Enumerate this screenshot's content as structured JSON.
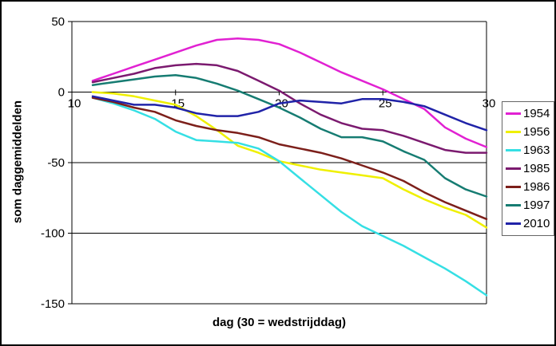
{
  "chart_data": {
    "type": "line",
    "title": "",
    "xlabel": "dag (30 = wedstrijddag)",
    "ylabel": "som daggemiddelden",
    "xlim": [
      10,
      30
    ],
    "ylim": [
      -150,
      50
    ],
    "x_ticks": [
      "10",
      "15",
      "20",
      "25",
      "30"
    ],
    "y_ticks": [
      "50",
      "0",
      "-50",
      "-100",
      "-150"
    ],
    "grid": "horizontal",
    "legend_position": "right",
    "x_first_day": 11,
    "x_step": 1,
    "axis_color": "#000000",
    "gridline_color": "#000000",
    "series": [
      {
        "name": "1954",
        "color": "#E121D2",
        "values": [
          8,
          13,
          18,
          23,
          28,
          33,
          37,
          38,
          37,
          34,
          28,
          21,
          14,
          8,
          2,
          -5,
          -12,
          -25,
          -33,
          -39
        ]
      },
      {
        "name": "1956",
        "color": "#EFF000",
        "values": [
          0,
          -1,
          -3,
          -6,
          -9,
          -17,
          -27,
          -38,
          -43,
          -49,
          -52,
          -55,
          -57,
          -59,
          -61,
          -69,
          -76,
          -82,
          -87,
          -96
        ]
      },
      {
        "name": "1963",
        "color": "#35DFE4",
        "values": [
          -4,
          -8,
          -13,
          -19,
          -28,
          -34,
          -35,
          -36,
          -40,
          -49,
          -61,
          -73,
          -85,
          -95,
          -102,
          -109,
          -117,
          -125,
          -134,
          -144
        ]
      },
      {
        "name": "1985",
        "color": "#7B1A6F",
        "values": [
          7,
          10,
          13,
          17,
          19,
          20,
          19,
          15,
          8,
          1,
          -8,
          -16,
          -22,
          -26,
          -27,
          -31,
          -36,
          -41,
          -43,
          -43
        ]
      },
      {
        "name": "1986",
        "color": "#7C1F1A",
        "values": [
          -4,
          -7,
          -11,
          -14,
          -20,
          -24,
          -27,
          -29,
          -32,
          -37,
          -40,
          -43,
          -47,
          -52,
          -57,
          -63,
          -71,
          -78,
          -84,
          -90
        ]
      },
      {
        "name": "1997",
        "color": "#167C72",
        "values": [
          5,
          7,
          9,
          11,
          12,
          10,
          6,
          1,
          -5,
          -11,
          -18,
          -26,
          -32,
          -32,
          -35,
          -42,
          -48,
          -61,
          -69,
          -74
        ]
      },
      {
        "name": "2010",
        "color": "#2023A8",
        "values": [
          -3,
          -6,
          -9,
          -9,
          -11,
          -15,
          -17,
          -17,
          -14,
          -8,
          -6,
          -7,
          -8,
          -5,
          -5,
          -7,
          -10,
          -16,
          -22,
          -27
        ]
      }
    ]
  }
}
